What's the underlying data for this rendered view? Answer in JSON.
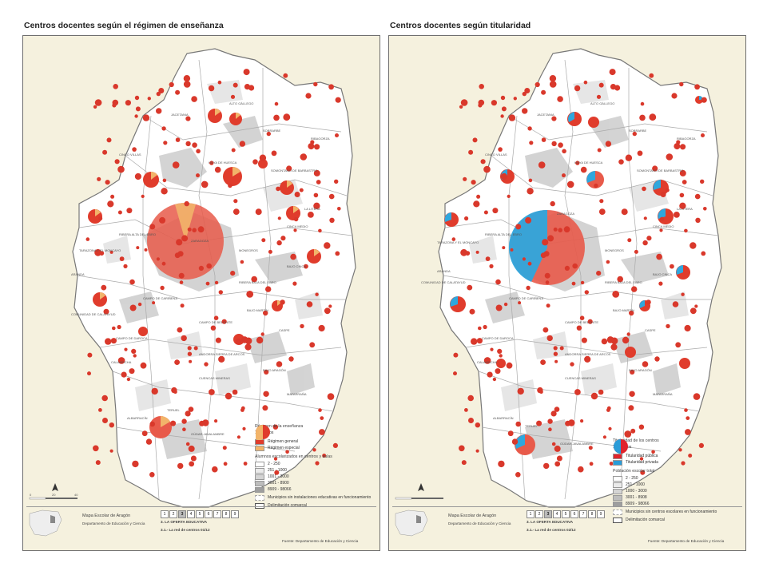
{
  "left": {
    "title": "Centros docentes según el régimen de enseñanza",
    "legend_title": "Régimen de la enseñanza",
    "legend_circle_label": "10 centros",
    "legend_items": [
      "Régimen general",
      "Régimen especial"
    ],
    "pop_title": "Alumnos escolarizados en centros y aulas",
    "pop_items": [
      "2 - 250",
      "251 - 1000",
      "1001 - 3000",
      "3001 - 8900",
      "8909 - 98066"
    ],
    "no_install": "Municipios sin instalaciones educativas en funcionamiento",
    "comarcal": "Delimitación comarcal",
    "sheet_title": "Mapa Escolar de Aragón",
    "dept": "Departamento de Educación y Ciencia",
    "section": "3. LA OFERTA EDUCATIVA",
    "map_name": "3.1.- La red de centros 01/12",
    "source": "Fuente: Departamento de Educación y Ciencia"
  },
  "right": {
    "title": "Centros docentes según titularidad",
    "legend_title": "Titularidad de los centros",
    "legend_circle_label": "10 centros",
    "legend_items": [
      "Titularidad pública",
      "Titularidad privada"
    ],
    "pop_title": "Población escolar total",
    "pop_items": [
      "2 - 250",
      "251 - 1000",
      "1000 - 3000",
      "3001 - 8908",
      "8909 - 98066"
    ],
    "no_install": "Municipios sin centros escolares en funcionamiento",
    "comarcal": "Delimitación comarcal",
    "sheet_title": "Mapa Escolar de Aragón",
    "dept": "Departamento de Educación y Ciencia",
    "section": "3. LA OFERTA EDUCATIVA",
    "map_name": "3.1.- La red de centros 02/12",
    "source": "Fuente: Departamento de Educación y Ciencia"
  },
  "page_numbers": [
    "1",
    "2",
    "3",
    "4",
    "5",
    "6",
    "7",
    "8",
    "9"
  ],
  "active_page": "3",
  "colors": {
    "general": "#e03c2c",
    "especial": "#f2b46a",
    "publica": "#e0242c",
    "privada": "#2a9cd8",
    "paper": "#f5f1de",
    "land": "#ffffff",
    "gray1": "#e4e4e4",
    "gray2": "#c8c8c8",
    "gray3": "#a7a7a7"
  }
}
